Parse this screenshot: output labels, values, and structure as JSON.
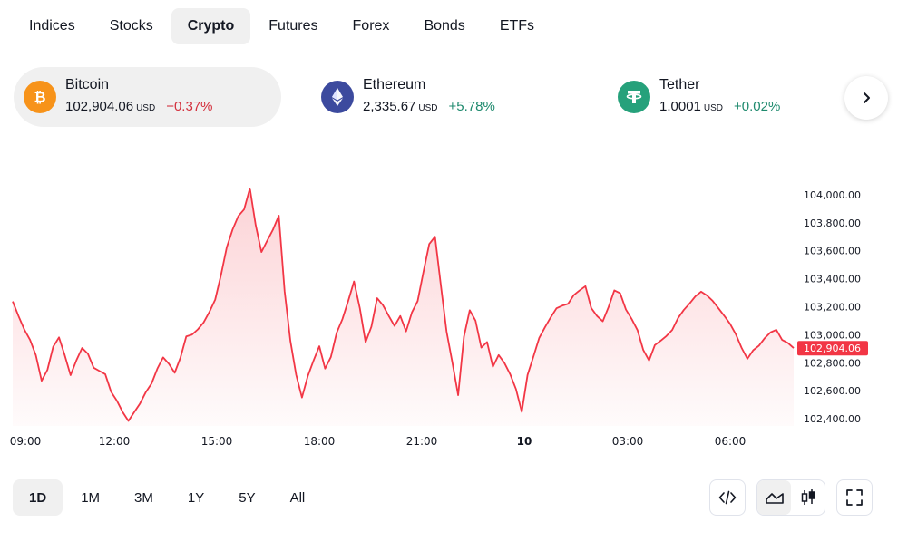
{
  "tabs": [
    {
      "label": "Indices",
      "active": false
    },
    {
      "label": "Stocks",
      "active": false
    },
    {
      "label": "Crypto",
      "active": true
    },
    {
      "label": "Futures",
      "active": false
    },
    {
      "label": "Forex",
      "active": false
    },
    {
      "label": "Bonds",
      "active": false
    },
    {
      "label": "ETFs",
      "active": false
    }
  ],
  "tickers": [
    {
      "name": "Bitcoin",
      "price": "102,904.06",
      "unit": "USD",
      "change": "−0.37%",
      "direction": "down",
      "icon": "bitcoin-icon",
      "color": "#f7931a",
      "active": true
    },
    {
      "name": "Ethereum",
      "price": "2,335.67",
      "unit": "USD",
      "change": "+5.78%",
      "direction": "up",
      "icon": "ethereum-icon",
      "color": "#3c4a9e",
      "active": false
    },
    {
      "name": "Tether",
      "price": "1.0001",
      "unit": "USD",
      "change": "+0.02%",
      "direction": "up",
      "icon": "tether-icon",
      "color": "#26a17b",
      "active": false
    }
  ],
  "next_icon": "chevron-right-icon",
  "chart_data": {
    "type": "area",
    "series": [
      {
        "values": [
          103238,
          103134,
          103038,
          102963,
          102854,
          102671,
          102749,
          102914,
          102981,
          102853,
          102711,
          102816,
          102905,
          102864,
          102764,
          102741,
          102718,
          102593,
          102529,
          102448,
          102384,
          102446,
          102508,
          102589,
          102651,
          102757,
          102838,
          102792,
          102728,
          102837,
          102988,
          103001,
          103038,
          103088,
          103163,
          103251,
          103426,
          103625,
          103751,
          103848,
          103896,
          104046,
          103784,
          103591,
          103673,
          103752,
          103851,
          103312,
          102956,
          102713,
          102551,
          102703,
          102815,
          102918,
          102758,
          102841,
          103014,
          103112,
          103242,
          103381,
          103191,
          102946,
          103057,
          103261,
          103211,
          103135,
          103063,
          103134,
          103024,
          103159,
          103241,
          103449,
          103648,
          103701,
          103357,
          103022,
          102801,
          102568,
          102986,
          103175,
          103101,
          102908,
          102948,
          102771,
          102855,
          102798,
          102717,
          102611,
          102448,
          102713,
          102842,
          102976,
          103053,
          103124,
          103189,
          103208,
          103221,
          103284,
          103317,
          103347,
          103191,
          103134,
          103096,
          103198,
          103317,
          103297,
          103180,
          103112,
          103033,
          102891,
          102816,
          102926,
          102957,
          102991,
          103034,
          103118,
          103177,
          103223,
          103274,
          103308,
          103281,
          103242,
          103189,
          103135,
          103078,
          103003,
          102906,
          102828,
          102889,
          102922,
          102976,
          103017,
          103035,
          102963,
          102941,
          102905
        ],
        "color": "#f23645"
      }
    ],
    "x_ticks": [
      "09:00",
      "12:00",
      "15:00",
      "18:00",
      "21:00",
      "10",
      "03:00",
      "06:00"
    ],
    "x_bold_ticks": [
      "10"
    ],
    "y_ticks": [
      "102,400.00",
      "102,600.00",
      "102,800.00",
      "103,000.00",
      "103,200.00",
      "103,400.00",
      "103,600.00",
      "103,800.00",
      "104,000.00"
    ],
    "ylim": [
      102370,
      104200
    ],
    "last_price_label": "102,904.06",
    "line_color": "#f23645",
    "label_bg": "#f23645",
    "grid": false,
    "title": "",
    "xlabel": "",
    "ylabel": ""
  },
  "ranges": [
    {
      "label": "1D",
      "active": true
    },
    {
      "label": "1M",
      "active": false
    },
    {
      "label": "3M",
      "active": false
    },
    {
      "label": "1Y",
      "active": false
    },
    {
      "label": "5Y",
      "active": false
    },
    {
      "label": "All",
      "active": false
    }
  ],
  "tools": {
    "embed_icon": "code-icon",
    "area_icon": "area-chart-icon",
    "candles_icon": "candlestick-icon",
    "fullscreen_icon": "fullscreen-icon"
  }
}
